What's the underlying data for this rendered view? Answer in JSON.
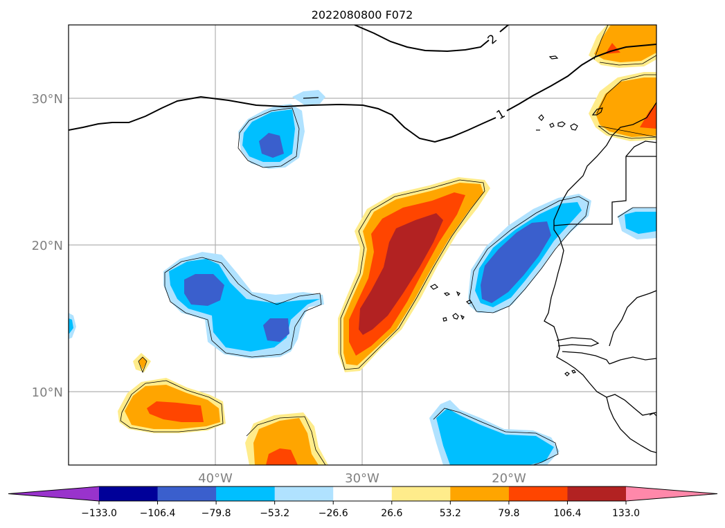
{
  "title": "2022080800 F072",
  "lat_labels": [
    "30°N",
    "20°N",
    "10°N"
  ],
  "lon_labels": [
    "40°W",
    "30°W",
    "20°W"
  ],
  "contour_labels": [
    "2",
    "1"
  ],
  "colorbar": {
    "ticks": [
      "−133.0",
      "−106.4",
      "−79.8",
      "−53.2",
      "−26.6",
      "26.6",
      "53.2",
      "79.8",
      "106.4",
      "133.0"
    ],
    "colors": [
      "#9933cc",
      "#000099",
      "#3a5fcd",
      "#00bfff",
      "#b0e2ff",
      "#ffffff",
      "#ffec8b",
      "#ffa500",
      "#ff4500",
      "#b22222",
      "#ff88aa"
    ]
  },
  "colors": {
    "neg_extreme": "#9933cc",
    "neg_4": "#000099",
    "neg_3": "#3a5fcd",
    "neg_2": "#00bfff",
    "neg_1": "#b0e2ff",
    "pos_1": "#ffec8b",
    "pos_2": "#ffa500",
    "pos_3": "#ff4500",
    "pos_4": "#b22222",
    "pos_extreme": "#ff88aa",
    "grid": "#b0b0b0",
    "tick_label": "#808080"
  }
}
